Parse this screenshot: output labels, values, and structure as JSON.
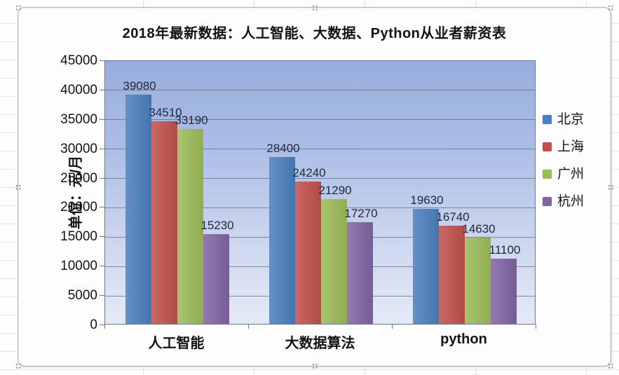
{
  "sheet": {
    "context": "excel-worksheet-with-selected-chart"
  },
  "chart_data": {
    "type": "bar",
    "title": "2018年最新数据：人工智能、大数据、Python从业者薪资表",
    "xlabel": "",
    "ylabel": "单位：元/月",
    "categories": [
      "人工智能",
      "大数据算法",
      "python"
    ],
    "series": [
      {
        "name": "北京",
        "color": "#4A7EBD",
        "values": [
          39080,
          28400,
          19630
        ]
      },
      {
        "name": "上海",
        "color": "#C0504D",
        "values": [
          34510,
          24240,
          16740
        ]
      },
      {
        "name": "广州",
        "color": "#9BBB59",
        "values": [
          33190,
          21290,
          14630
        ]
      },
      {
        "name": "杭州",
        "color": "#8064A2",
        "values": [
          15230,
          17270,
          11100
        ]
      }
    ],
    "ylim": [
      0,
      45000
    ],
    "ytick_step": 5000,
    "ytick_labels": [
      "0",
      "5000",
      "10000",
      "15000",
      "20000",
      "25000",
      "30000",
      "35000",
      "40000",
      "45000"
    ],
    "grid": true,
    "gridline_color": "#6e7787",
    "plot_background": "blue-gradient",
    "legend_position": "right",
    "data_labels": "outside-end"
  }
}
